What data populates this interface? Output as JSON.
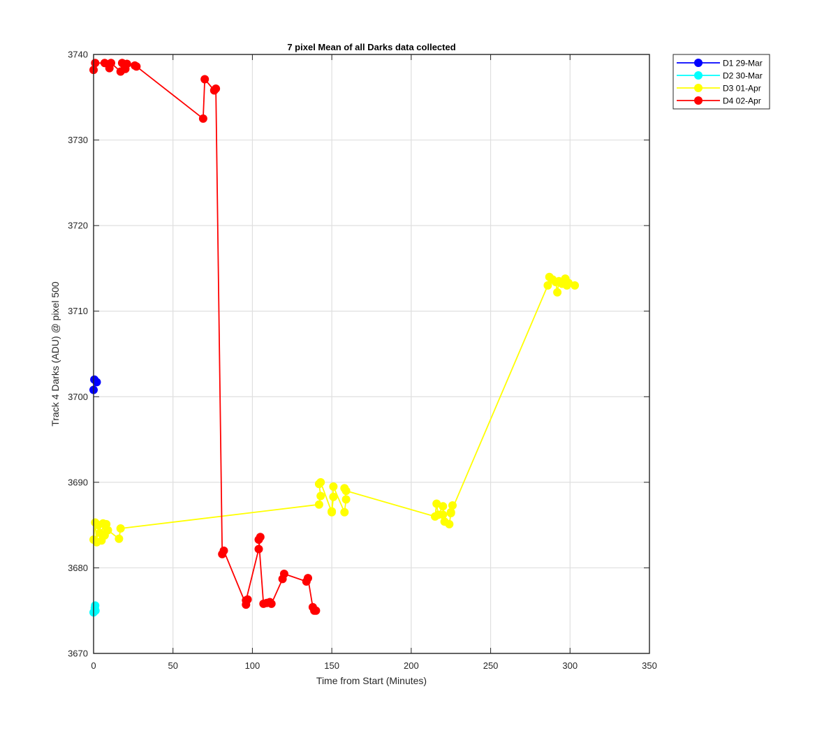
{
  "chart_data": {
    "type": "line",
    "title": "7 pixel Mean of all Darks data collected",
    "xlabel": "Time from Start (Minutes)",
    "ylabel": "Track 4 Darks (ADU) @ pixel 500",
    "xlim": [
      0,
      350
    ],
    "ylim": [
      3670,
      3740
    ],
    "xticks": [
      0,
      50,
      100,
      150,
      200,
      250,
      300,
      350
    ],
    "yticks": [
      3670,
      3680,
      3690,
      3700,
      3710,
      3720,
      3730,
      3740
    ],
    "grid": true,
    "legend_position": "outside-top-right",
    "series": [
      {
        "name": "D1 29-Mar",
        "color": "#0000ff",
        "x": [
          0,
          0.5,
          2
        ],
        "y": [
          3700.8,
          3702.0,
          3701.7
        ]
      },
      {
        "name": "D2 30-Mar",
        "color": "#00ffff",
        "x": [
          0,
          1,
          1.2,
          0.8
        ],
        "y": [
          3674.8,
          3675.6,
          3675.0,
          3675.3
        ]
      },
      {
        "name": "D3 01-Apr",
        "color": "#ffff00",
        "x": [
          0,
          1,
          2,
          3,
          4,
          5,
          6,
          7,
          8,
          9,
          16,
          17,
          142,
          143,
          142,
          143,
          150,
          151,
          150,
          151,
          158,
          159,
          158,
          159,
          215,
          216,
          217,
          220,
          221,
          220,
          224,
          225,
          226,
          225,
          286,
          287,
          289,
          291,
          292,
          293,
          295,
          297,
          298,
          299,
          303
        ],
        "y": [
          3683.3,
          3685.3,
          3683.0,
          3685.0,
          3684.1,
          3683.2,
          3685.2,
          3683.8,
          3685.1,
          3684.4,
          3683.4,
          3684.6,
          3687.4,
          3688.4,
          3689.8,
          3690.0,
          3686.5,
          3688.3,
          3686.6,
          3689.5,
          3686.5,
          3688.0,
          3689.3,
          3689.0,
          3686.0,
          3687.5,
          3686.2,
          3687.2,
          3685.4,
          3686.2,
          3685.1,
          3686.4,
          3687.3,
          3686.5,
          3713.0,
          3714.0,
          3713.7,
          3713.4,
          3712.2,
          3713.5,
          3713.2,
          3713.8,
          3713.0,
          3713.3,
          3713.0
        ]
      },
      {
        "name": "D4 02-Apr",
        "color": "#ff0000",
        "x": [
          0,
          1,
          7,
          10,
          11,
          17,
          18,
          20,
          21,
          26,
          27,
          69,
          70,
          76,
          77,
          81,
          82,
          96,
          97,
          96,
          104,
          105,
          104,
          107,
          109,
          111,
          112,
          119,
          120,
          134,
          135,
          138,
          139,
          140
        ],
        "y": [
          3738.2,
          3739.0,
          3739.0,
          3738.4,
          3739.0,
          3738.0,
          3739.0,
          3738.3,
          3738.9,
          3738.7,
          3738.6,
          3732.5,
          3737.1,
          3735.8,
          3736.0,
          3681.6,
          3682.0,
          3675.7,
          3676.3,
          3676.2,
          3682.2,
          3683.6,
          3683.3,
          3675.8,
          3675.9,
          3676.0,
          3675.8,
          3678.7,
          3679.3,
          3678.4,
          3678.8,
          3675.4,
          3675.0,
          3675.0
        ]
      }
    ]
  }
}
